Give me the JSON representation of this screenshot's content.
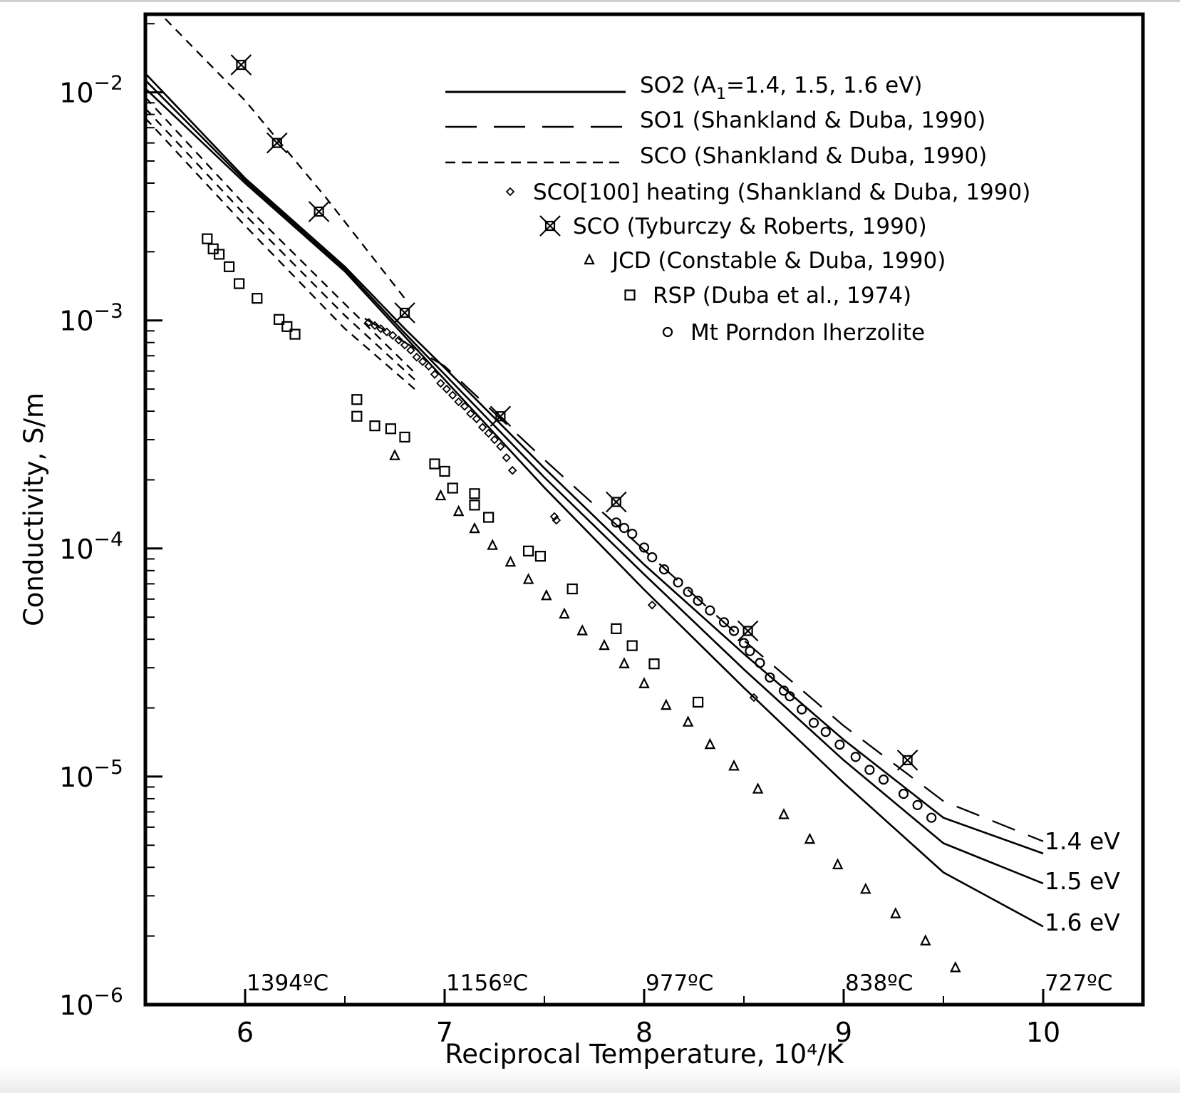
{
  "chart_data": {
    "type": "scatter",
    "xlabel": "Reciprocal Temperature, 10⁴/K",
    "ylabel": "Conductivity, S/m",
    "xlim": [
      5.5,
      10.5
    ],
    "ylim": [
      1e-06,
      0.022
    ],
    "y_scale": "log",
    "grid": false,
    "legend_position": "top-right",
    "x_ticks": [
      {
        "value": 6,
        "label": "6"
      },
      {
        "value": 7,
        "label": "7"
      },
      {
        "value": 8,
        "label": "8"
      },
      {
        "value": 9,
        "label": "9"
      },
      {
        "value": 10,
        "label": "10"
      }
    ],
    "y_ticks": [
      {
        "value": 0.01,
        "base": "10",
        "exp": "−2"
      },
      {
        "value": 0.001,
        "base": "10",
        "exp": "−3"
      },
      {
        "value": 0.0001,
        "base": "10",
        "exp": "−4"
      },
      {
        "value": 1e-05,
        "base": "10",
        "exp": "−5"
      },
      {
        "value": 1e-06,
        "base": "10",
        "exp": "−6"
      }
    ],
    "temperature_labels": [
      {
        "x": 6.0,
        "label": "1394ºC"
      },
      {
        "x": 7.0,
        "label": "1156ºC"
      },
      {
        "x": 8.0,
        "label": "977ºC"
      },
      {
        "x": 9.0,
        "label": "838ºC"
      },
      {
        "x": 10.0,
        "label": "727ºC"
      }
    ],
    "ev_labels": [
      {
        "series": "SO2 1.4 eV",
        "label": "1.4  eV"
      },
      {
        "series": "SO2 1.5 eV",
        "label": "1.5  eV"
      },
      {
        "series": "SO2 1.6 eV",
        "label": "1.6  eV"
      }
    ],
    "legend": [
      {
        "marker": "solid",
        "label_pre": "SO2 (A",
        "label_sub": "1",
        "label_post": "=1.4,  1.5,  1.6  eV)"
      },
      {
        "marker": "longdash",
        "label": "SO1  (Shankland  &  Duba,  1990)"
      },
      {
        "marker": "shortdash",
        "label": "SCO  (Shankland  &  Duba,  1990)"
      },
      {
        "marker": "diamond",
        "label": "SCO[100]  heating  (Shankland  &  Duba,  1990)"
      },
      {
        "marker": "starbox",
        "label": "SCO  (Tyburczy  &  Roberts,  1990)"
      },
      {
        "marker": "triangle",
        "label": "JCD  (Constable  &  Duba,  1990)"
      },
      {
        "marker": "square",
        "label": "RSP  (Duba  et  al.,  1974)"
      },
      {
        "marker": "circle",
        "label": "Mt  Porndon  lherzolite"
      }
    ],
    "lines": [
      {
        "name": "SO2 1.4 eV",
        "style": "solid",
        "x": [
          5.5,
          6.0,
          6.5,
          6.8,
          7.0,
          7.5,
          8.0,
          8.5,
          9.0,
          9.5,
          10.0
        ],
        "y": [
          0.0121,
          0.0042,
          0.00172,
          0.00092,
          0.00062,
          0.000225,
          8.5e-05,
          3.45e-05,
          1.45e-05,
          6.6e-06,
          4.6e-06
        ]
      },
      {
        "name": "SO2 1.5 eV",
        "style": "solid",
        "x": [
          5.5,
          6.0,
          6.5,
          6.8,
          7.0,
          7.5,
          8.0,
          8.5,
          9.0,
          9.5,
          10.0
        ],
        "y": [
          0.0113,
          0.0041,
          0.00168,
          0.00088,
          0.00058,
          0.000205,
          7.7e-05,
          2.95e-05,
          1.18e-05,
          5.1e-06,
          3.4e-06
        ]
      },
      {
        "name": "SO2 1.6 eV",
        "style": "solid",
        "x": [
          5.5,
          6.0,
          6.5,
          6.8,
          7.0,
          7.5,
          8.0,
          8.5,
          9.0,
          9.5,
          10.0
        ],
        "y": [
          0.0104,
          0.004,
          0.00164,
          0.00085,
          0.00055,
          0.000185,
          6.6e-05,
          2.45e-05,
          9.4e-06,
          3.8e-06,
          2.2e-06
        ]
      },
      {
        "name": "SO1 (Shankland & Duba, 1990)",
        "style": "longdash",
        "x": [
          6.6,
          7.0,
          7.5,
          8.0,
          8.5,
          9.0,
          9.5,
          10.0
        ],
        "y": [
          0.00102,
          0.00063,
          0.000245,
          9.85e-05,
          3.95e-05,
          1.67e-05,
          7.8e-06,
          5.2e-06
        ]
      },
      {
        "name": "SCO (Shankland & Duba, 1990) a",
        "style": "shortdash",
        "x": [
          5.5,
          6.0,
          6.5,
          6.85
        ],
        "y": [
          0.0095,
          0.0032,
          0.00118,
          0.00059
        ]
      },
      {
        "name": "SCO (Shankland & Duba, 1990) b",
        "style": "shortdash",
        "x": [
          5.5,
          6.0,
          6.5,
          6.85
        ],
        "y": [
          0.0085,
          0.0029,
          0.00105,
          0.00055
        ]
      },
      {
        "name": "SCO (Shankland & Duba, 1990) c",
        "style": "shortdash",
        "x": [
          5.5,
          6.0,
          6.5,
          6.85
        ],
        "y": [
          0.0077,
          0.0026,
          0.00092,
          0.0005
        ]
      },
      {
        "name": "SCO (Tyburczy & Roberts, 1990) fit",
        "style": "shortdash",
        "x": [
          5.6,
          6.0,
          6.4,
          6.8
        ],
        "y": [
          0.021,
          0.0092,
          0.0035,
          0.00125
        ]
      }
    ],
    "series": [
      {
        "name": "SCO[100] heating",
        "marker": "diamond",
        "x": [
          6.62,
          6.65,
          6.68,
          6.71,
          6.74,
          6.77,
          6.8,
          6.83,
          6.86,
          6.89,
          6.92,
          6.95,
          6.98,
          7.01,
          7.04,
          7.07,
          7.1,
          7.13,
          7.16,
          7.19,
          7.22,
          7.25,
          7.28,
          7.31,
          7.34,
          7.55,
          7.56,
          8.04,
          8.55
        ],
        "y": [
          0.00098,
          0.00095,
          0.00092,
          0.00089,
          0.00086,
          0.00082,
          0.00078,
          0.00074,
          0.00069,
          0.00066,
          0.00063,
          0.00058,
          0.00053,
          0.0005,
          0.00047,
          0.00044,
          0.00042,
          0.00039,
          0.00037,
          0.00034,
          0.00032,
          0.0003,
          0.00028,
          0.00025,
          0.00022,
          0.000138,
          0.000133,
          5.65e-05,
          2.22e-05
        ]
      },
      {
        "name": "SCO (Tyburczy & Roberts, 1990)",
        "marker": "starbox",
        "x": [
          5.98,
          6.16,
          6.37,
          6.8,
          7.28,
          7.86,
          8.52,
          9.32
        ],
        "y": [
          0.0132,
          0.006,
          0.003,
          0.00108,
          0.00038,
          0.00016,
          4.35e-05,
          1.18e-05
        ]
      },
      {
        "name": "JCD (Constable & Duba, 1990)",
        "marker": "triangle",
        "x": [
          6.75,
          6.98,
          7.07,
          7.15,
          7.24,
          7.33,
          7.42,
          7.51,
          7.6,
          7.69,
          7.8,
          7.9,
          8.0,
          8.11,
          8.22,
          8.33,
          8.45,
          8.57,
          8.7,
          8.83,
          8.97,
          9.11,
          9.26,
          9.41,
          9.56
        ],
        "y": [
          0.000255,
          0.00017,
          0.000145,
          0.000122,
          0.000103,
          8.7e-05,
          7.3e-05,
          6.2e-05,
          5.15e-05,
          4.35e-05,
          3.75e-05,
          3.12e-05,
          2.55e-05,
          2.05e-05,
          1.73e-05,
          1.38e-05,
          1.11e-05,
          8.8e-06,
          6.8e-06,
          5.3e-06,
          4.1e-06,
          3.2e-06,
          2.5e-06,
          1.9e-06,
          1.45e-06
        ]
      },
      {
        "name": "RSP (Duba et al., 1974)",
        "marker": "square",
        "x": [
          5.81,
          5.84,
          5.87,
          5.92,
          5.97,
          6.06,
          6.17,
          6.21,
          6.25,
          6.56,
          6.56,
          6.65,
          6.73,
          6.8,
          6.95,
          7.0,
          7.04,
          7.15,
          7.15,
          7.22,
          7.42,
          7.48,
          7.64,
          7.86,
          7.94,
          8.05,
          8.27
        ],
        "y": [
          0.00228,
          0.00206,
          0.00195,
          0.00172,
          0.00145,
          0.00125,
          0.00101,
          0.00094,
          0.00087,
          0.00045,
          0.00038,
          0.000345,
          0.000335,
          0.000308,
          0.000235,
          0.000218,
          0.000184,
          0.000174,
          0.000155,
          0.000137,
          9.75e-05,
          9.25e-05,
          6.65e-05,
          4.45e-05,
          3.75e-05,
          3.12e-05,
          2.12e-05
        ]
      },
      {
        "name": "Mt Porndon lherzolite",
        "marker": "circle",
        "x": [
          7.86,
          7.9,
          7.94,
          8.0,
          8.04,
          8.1,
          8.17,
          8.22,
          8.27,
          8.33,
          8.4,
          8.45,
          8.5,
          8.53,
          8.58,
          8.63,
          8.7,
          8.73,
          8.79,
          8.85,
          8.91,
          8.98,
          9.06,
          9.13,
          9.2,
          9.3,
          9.37,
          9.44
        ],
        "y": [
          0.00013,
          0.000123,
          0.000116,
          0.000101,
          9.15e-05,
          8.1e-05,
          7.1e-05,
          6.45e-05,
          5.9e-05,
          5.35e-05,
          4.75e-05,
          4.35e-05,
          3.85e-05,
          3.55e-05,
          3.15e-05,
          2.72e-05,
          2.38e-05,
          2.25e-05,
          1.97e-05,
          1.72e-05,
          1.57e-05,
          1.38e-05,
          1.22e-05,
          1.07e-05,
          9.7e-06,
          8.4e-06,
          7.5e-06,
          6.6e-06
        ]
      }
    ]
  }
}
